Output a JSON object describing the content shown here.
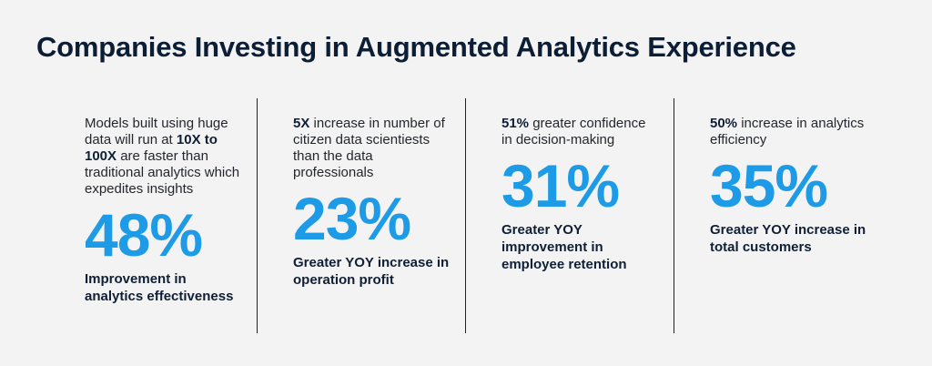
{
  "title": "Companies Investing in Augmented Analytics Experience",
  "accent_color": "#1e9be6",
  "columns": [
    {
      "desc_pre": "Models built using huge data will run at ",
      "desc_bold": "10X to 100X",
      "desc_post": " are faster than traditional analytics which expedites insights",
      "stat": "48%",
      "caption": "Improvement in analytics effectiveness"
    },
    {
      "desc_pre": "",
      "desc_bold": "5X",
      "desc_post": " increase in number of citizen data scientiests than the data professionals",
      "stat": "23%",
      "caption": "Greater YOY increase in operation profit"
    },
    {
      "desc_pre": "",
      "desc_bold": "51%",
      "desc_post": " greater confidence in decision-making",
      "stat": "31%",
      "caption": "Greater YOY improvement in employee retention"
    },
    {
      "desc_pre": "",
      "desc_bold": "50%",
      "desc_post": " increase in analytics efficiency",
      "stat": "35%",
      "caption": "Greater YOY increase in total customers"
    }
  ]
}
